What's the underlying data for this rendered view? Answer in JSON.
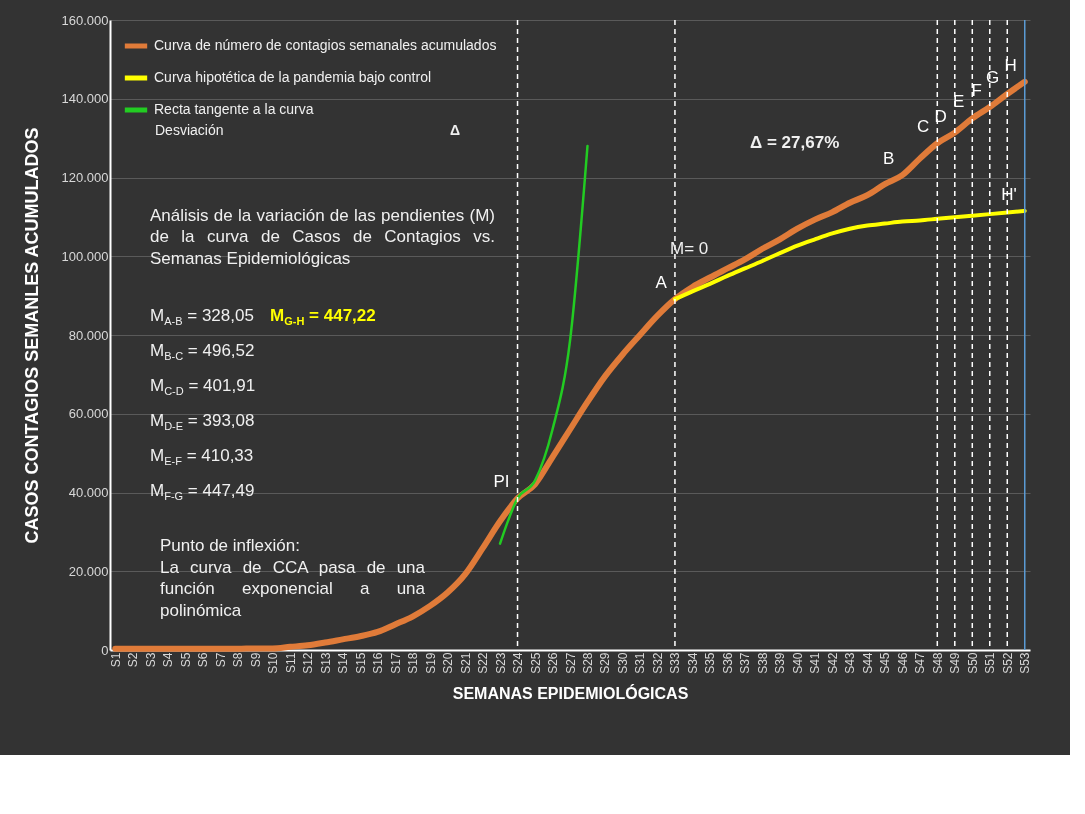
{
  "chart_data": {
    "type": "line",
    "xlabel": "SEMANAS EPIDEMIOLÓGICAS",
    "ylabel": "CASOS CONTAGIOS SEMANLES ACUMULADOS",
    "categories": [
      "S1",
      "S2",
      "S3",
      "S4",
      "S5",
      "S6",
      "S7",
      "S8",
      "S9",
      "S10",
      "S11",
      "S12",
      "S13",
      "S14",
      "S15",
      "S16",
      "S17",
      "S18",
      "S19",
      "S20",
      "S21",
      "S22",
      "S23",
      "S24",
      "S25",
      "S26",
      "S27",
      "S28",
      "S29",
      "S30",
      "S31",
      "S32",
      "S33",
      "S34",
      "S35",
      "S36",
      "S37",
      "S38",
      "S39",
      "S40",
      "S41",
      "S42",
      "S43",
      "S44",
      "S45",
      "S46",
      "S47",
      "S48",
      "S49",
      "S50",
      "S51",
      "S52",
      "S53"
    ],
    "series": [
      {
        "name": "Curva de número de contagios semanales acumulados",
        "color": "#e07b39",
        "values": [
          300,
          300,
          300,
          300,
          300,
          300,
          300,
          300,
          400,
          400,
          800,
          1200,
          1900,
          2700,
          3500,
          4600,
          6500,
          8500,
          11200,
          14600,
          19200,
          25800,
          32700,
          38500,
          42100,
          49000,
          56000,
          63000,
          69500,
          75000,
          80000,
          84900,
          89100,
          92200,
          94600,
          96900,
          99200,
          101900,
          104300,
          107000,
          109300,
          111200,
          113600,
          115500,
          118300,
          120600,
          124800,
          128700,
          131400,
          135000,
          137900,
          141200,
          144300
        ]
      },
      {
        "name": "Curva hipotética de la pandemia bajo control",
        "color": "#ffff00",
        "values": [
          null,
          null,
          null,
          null,
          null,
          null,
          null,
          null,
          null,
          null,
          null,
          null,
          null,
          null,
          null,
          null,
          null,
          null,
          null,
          null,
          null,
          null,
          null,
          null,
          null,
          null,
          null,
          null,
          null,
          null,
          null,
          null,
          89100,
          91100,
          93000,
          95000,
          96900,
          98800,
          100800,
          102700,
          104300,
          105800,
          107000,
          107800,
          108300,
          108800,
          109100,
          109500,
          109900,
          110300,
          110700,
          111100,
          111500
        ]
      },
      {
        "name": "Recta tangente a la curva",
        "color": "#22cc22",
        "values": [
          null,
          null,
          null,
          null,
          null,
          null,
          null,
          null,
          null,
          null,
          null,
          null,
          null,
          null,
          null,
          null,
          null,
          null,
          null,
          null,
          null,
          null,
          27000,
          38500,
          43000,
          56000,
          78500,
          128000,
          null,
          null,
          null,
          null,
          null,
          null,
          null,
          null,
          null,
          null,
          null,
          null,
          null,
          null,
          null,
          null,
          null,
          null,
          null,
          null,
          null,
          null,
          null,
          null,
          null
        ]
      }
    ],
    "ylim": [
      0,
      160000
    ],
    "yticks": [
      {
        "value": 0,
        "label": "0"
      },
      {
        "value": 20000,
        "label": "20.000"
      },
      {
        "value": 40000,
        "label": "40.000"
      },
      {
        "value": 60000,
        "label": "60.000"
      },
      {
        "value": 80000,
        "label": "80.000"
      },
      {
        "value": 100000,
        "label": "100.000"
      },
      {
        "value": 120000,
        "label": "120.000"
      },
      {
        "value": 140000,
        "label": "140.000"
      },
      {
        "value": 160000,
        "label": "160.000"
      }
    ],
    "grid": "y",
    "legend": "top left",
    "ref_lines": [
      {
        "axis": "x",
        "value": "S24",
        "color": "#ffffff",
        "line_style": "dashed"
      },
      {
        "axis": "x",
        "value": "S33",
        "color": "#ffffff",
        "line_style": "dashed"
      },
      {
        "axis": "x",
        "value": "S48",
        "color": "#ffffff",
        "line_style": "dashed"
      },
      {
        "axis": "x",
        "value": "S49",
        "color": "#ffffff",
        "line_style": "dashed"
      },
      {
        "axis": "x",
        "value": "S50",
        "color": "#ffffff",
        "line_style": "dashed"
      },
      {
        "axis": "x",
        "value": "S51",
        "color": "#ffffff",
        "line_style": "dashed"
      },
      {
        "axis": "x",
        "value": "S52",
        "color": "#ffffff",
        "line_style": "dashed"
      },
      {
        "axis": "x",
        "value": "S53",
        "color": "#5b9bd5",
        "line_style": "solid"
      }
    ],
    "annotations": [
      "Desviación",
      "Δ",
      "Análisis de la variación de las pendientes (M) de la curva de Casos de Contagios vs. Semanas Epidemiológicas",
      "M$_{A-B}$ = 328,05",
      "M$_{G-H}$ = 447,22",
      "M$_{B-C}$ = 496,52",
      "M$_{C-D}$ = 401,91",
      "M$_{D-E}$ = 393,08",
      "M$_{E-F}$ = 410,33",
      "M$_{F-G}$ = 447,49",
      "Punto de inflexión:",
      "La curva de CCA pasa de una función exponencial a una polinómica",
      {
        "text": "PI",
        "x": "S24",
        "y": 38500
      },
      {
        "text": "A",
        "x": "S33",
        "y": 89100
      },
      {
        "text": "B",
        "x": "S46",
        "y": 120600
      },
      {
        "text": "C",
        "x": "S48",
        "y": 128700
      },
      {
        "text": "D",
        "x": "S49",
        "y": 131400
      },
      {
        "text": "E",
        "x": "S50",
        "y": 135000
      },
      {
        "text": "F",
        "x": "S51",
        "y": 137900
      },
      {
        "text": "G",
        "x": "S52",
        "y": 141200
      },
      {
        "text": "H",
        "x": "S53",
        "y": 144300
      },
      {
        "text": "H'",
        "x": "S53",
        "y": 111500
      },
      "Δ = 27,67%",
      "M= 0"
    ]
  }
}
